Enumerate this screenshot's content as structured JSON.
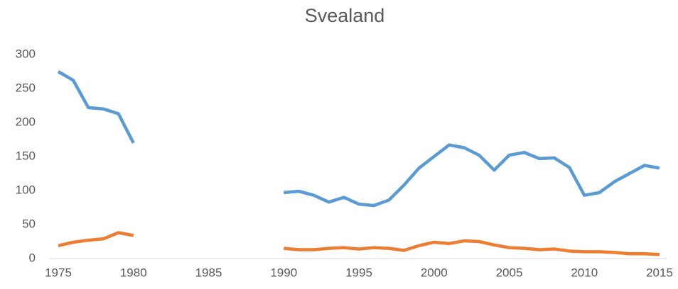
{
  "chart_data": {
    "type": "line",
    "title": "Svealand",
    "x": [
      1975,
      1976,
      1977,
      1978,
      1979,
      1980,
      1981,
      1982,
      1983,
      1984,
      1985,
      1986,
      1987,
      1988,
      1989,
      1990,
      1991,
      1992,
      1993,
      1994,
      1995,
      1996,
      1997,
      1998,
      1999,
      2000,
      2001,
      2002,
      2003,
      2004,
      2005,
      2006,
      2007,
      2008,
      2009,
      2010,
      2011,
      2012,
      2013,
      2014,
      2015
    ],
    "series": [
      {
        "color": "#5b9bd5",
        "values": [
          275,
          262,
          222,
          220,
          213,
          170,
          null,
          null,
          null,
          null,
          null,
          null,
          null,
          null,
          null,
          97,
          99,
          93,
          83,
          90,
          80,
          78,
          86,
          108,
          133,
          150,
          167,
          163,
          152,
          130,
          152,
          156,
          147,
          148,
          134,
          93,
          97,
          113,
          125,
          137,
          133
        ]
      },
      {
        "color": "#ed7d31",
        "values": [
          19,
          24,
          27,
          29,
          38,
          34,
          null,
          null,
          null,
          null,
          null,
          null,
          null,
          null,
          null,
          15,
          13,
          13,
          15,
          16,
          14,
          16,
          15,
          12,
          19,
          24,
          22,
          26,
          25,
          20,
          16,
          15,
          13,
          14,
          11,
          10,
          10,
          9,
          7,
          7,
          6
        ]
      }
    ],
    "xlim": [
      1975,
      2015
    ],
    "xticks": [
      1975,
      1980,
      1985,
      1990,
      1995,
      2000,
      2005,
      2010,
      2015
    ],
    "ylim": [
      0,
      300
    ],
    "yticks": [
      0,
      50,
      100,
      150,
      200,
      250,
      300
    ],
    "grid": false
  }
}
